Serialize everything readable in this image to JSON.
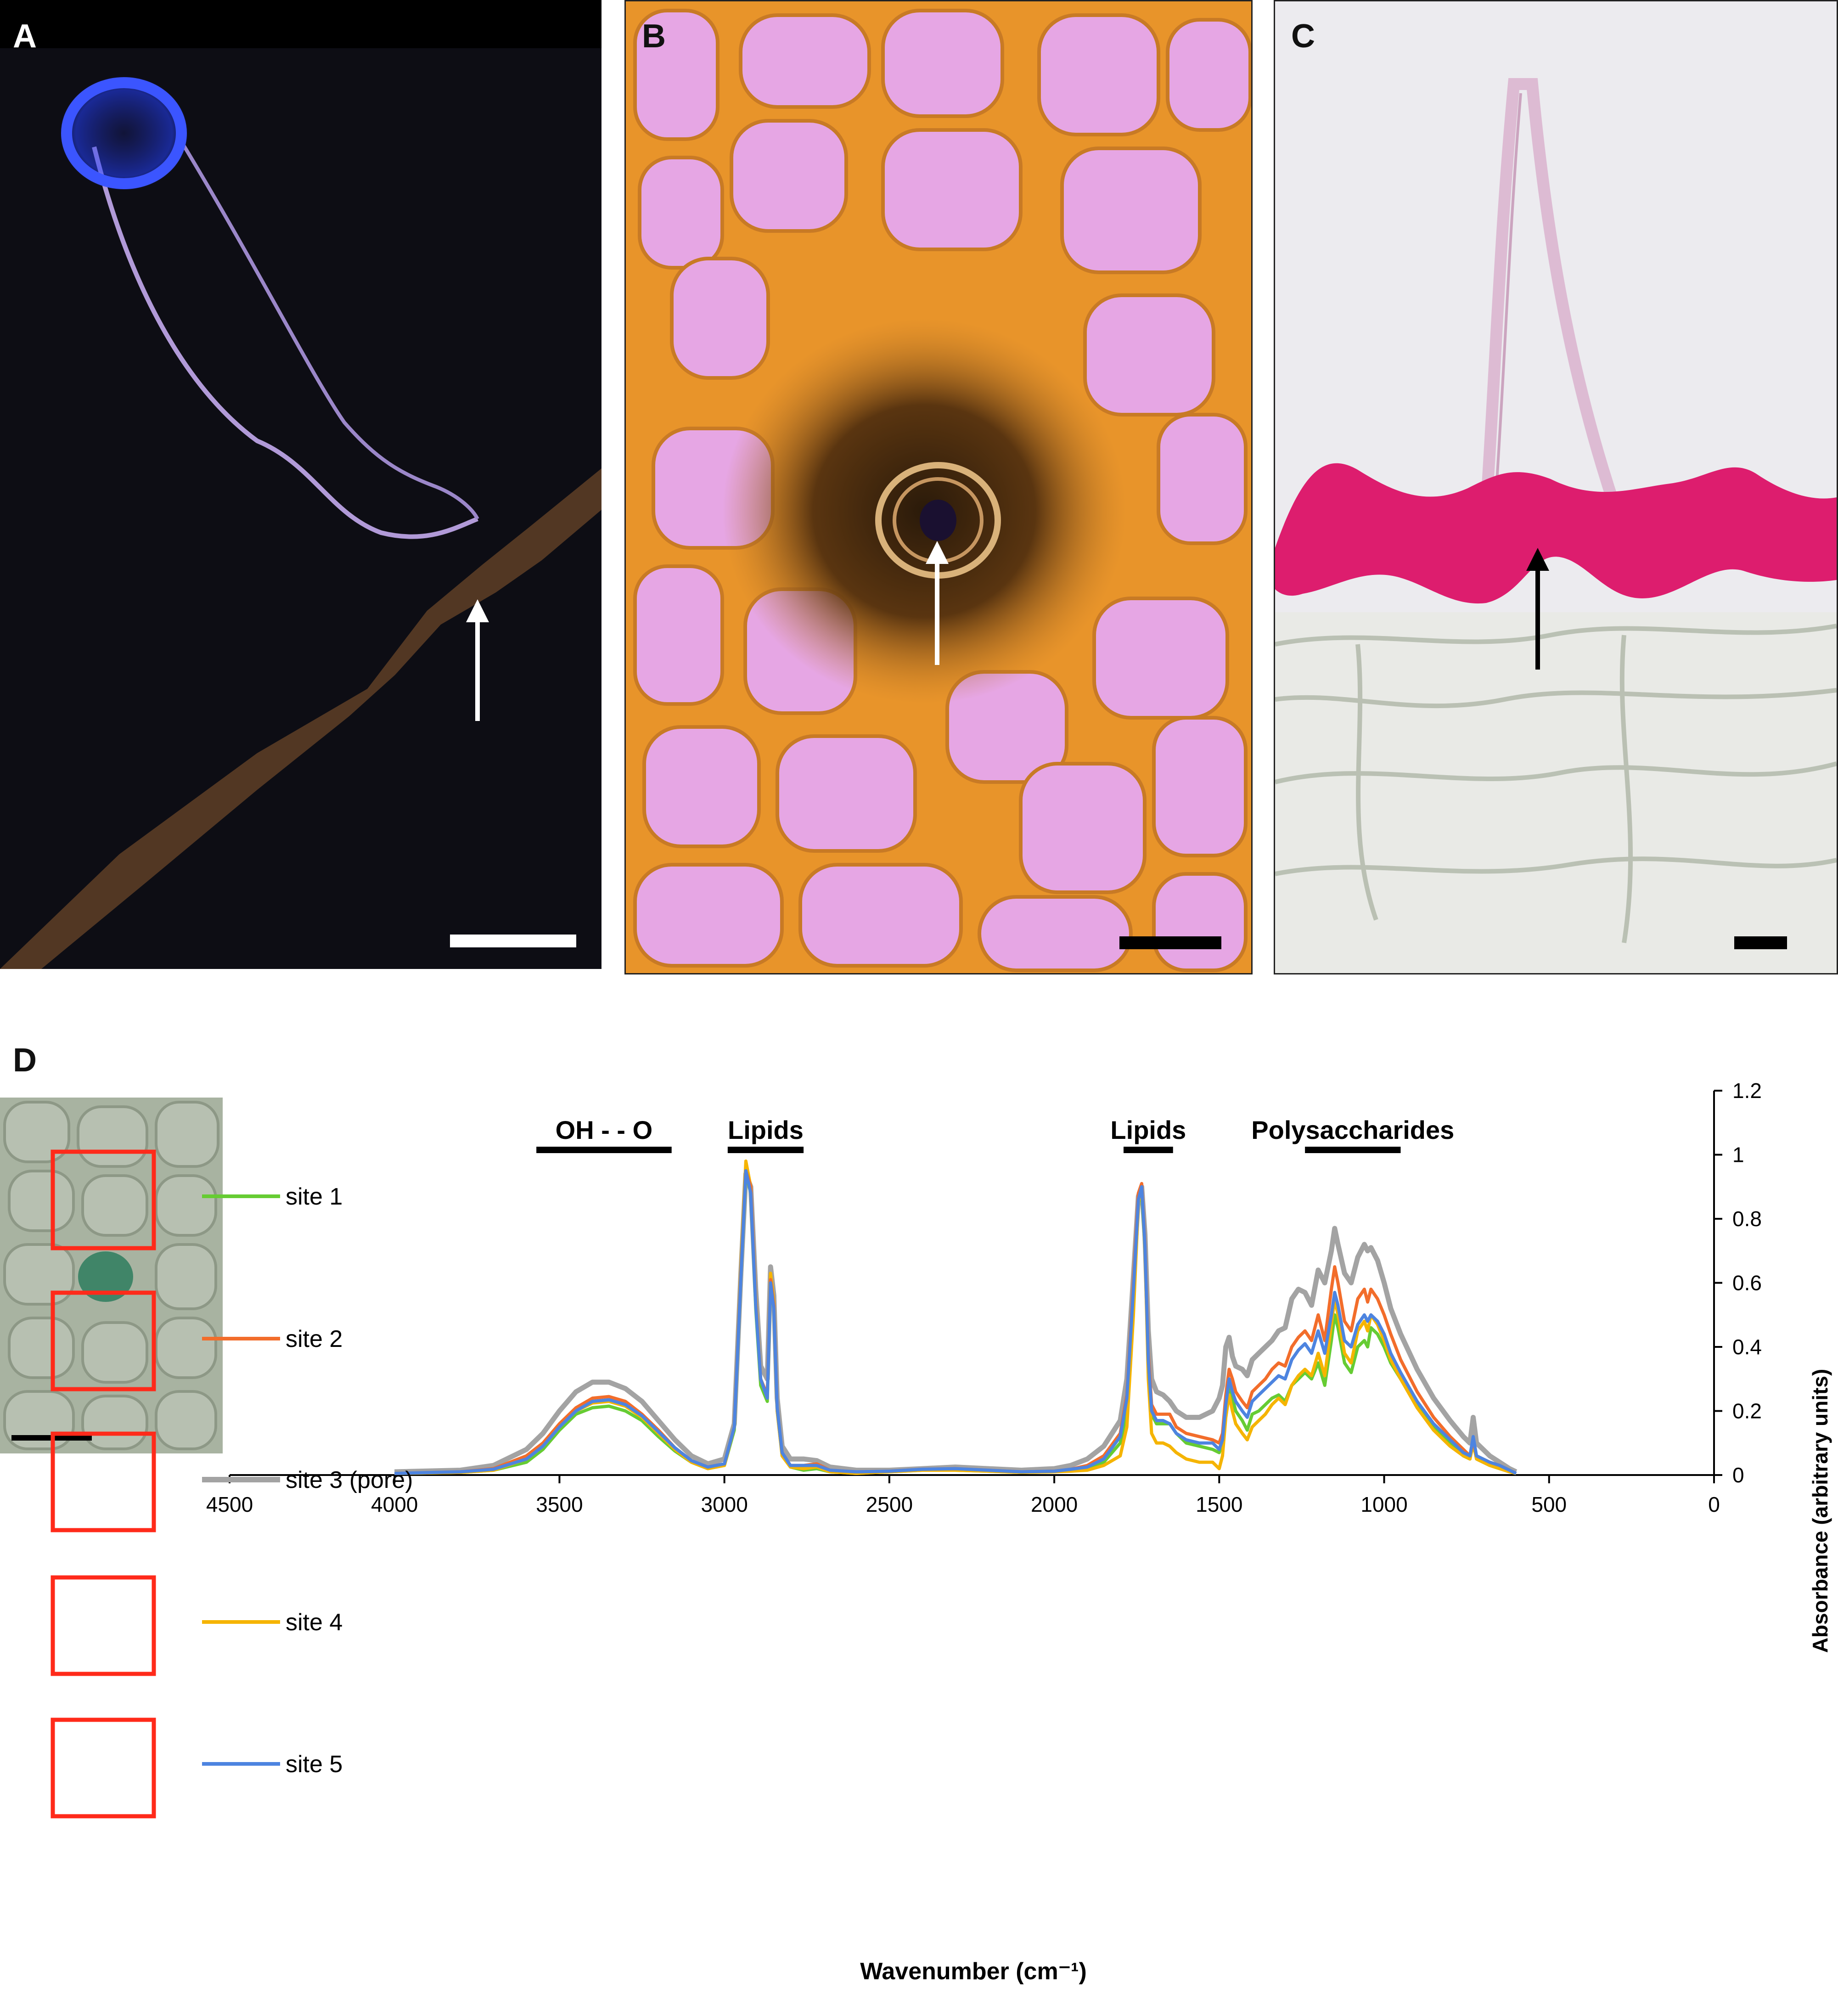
{
  "panels": {
    "a": {
      "label": "A"
    },
    "b": {
      "label": "B"
    },
    "c": {
      "label": "C"
    },
    "d": {
      "label": "D"
    }
  },
  "colors": {
    "site1": "#66cc33",
    "site2": "#f26d2b",
    "site3": "#a3a3a3",
    "site4": "#f5b400",
    "site5": "#4d84e0",
    "scale_bar": "#ffffff",
    "site_boxes": "#ff2a1a"
  },
  "chart_data": {
    "type": "line",
    "xlabel": "Wavenumber (cm⁻¹)",
    "ylabel": "Absorbance (arbitrary units)",
    "xlim": [
      4500,
      0
    ],
    "ylim": [
      0,
      1.2
    ],
    "x_ticks": [
      4500,
      4000,
      3500,
      3000,
      2500,
      2000,
      1500,
      1000,
      500,
      0
    ],
    "y_ticks": [
      0,
      0.2,
      0.4,
      0.6,
      0.8,
      1,
      1.2
    ],
    "y_tick_labels": [
      "0",
      "0.2",
      "0.4",
      "0.6",
      "0.8",
      "1",
      "1.2"
    ],
    "y_axis_side": "right",
    "grid": false,
    "legend_position": "left, beside inset image",
    "annotations": [
      {
        "text": "OH - - O",
        "range": [
          3570,
          3160
        ]
      },
      {
        "text": "Lipids",
        "range": [
          2990,
          2760
        ]
      },
      {
        "text": "Lipids",
        "range": [
          1790,
          1640
        ]
      },
      {
        "text": "Polysaccharides",
        "range": [
          1240,
          950
        ]
      }
    ],
    "x": [
      4000,
      3800,
      3700,
      3600,
      3550,
      3500,
      3450,
      3400,
      3350,
      3300,
      3250,
      3200,
      3150,
      3100,
      3050,
      3000,
      2970,
      2950,
      2935,
      2920,
      2905,
      2890,
      2870,
      2860,
      2850,
      2840,
      2825,
      2800,
      2760,
      2720,
      2680,
      2600,
      2500,
      2400,
      2300,
      2200,
      2100,
      2000,
      1950,
      1900,
      1850,
      1800,
      1780,
      1760,
      1745,
      1735,
      1725,
      1715,
      1705,
      1690,
      1670,
      1650,
      1630,
      1600,
      1560,
      1520,
      1500,
      1490,
      1480,
      1470,
      1460,
      1450,
      1430,
      1415,
      1400,
      1380,
      1360,
      1340,
      1320,
      1300,
      1280,
      1260,
      1240,
      1220,
      1200,
      1180,
      1160,
      1150,
      1140,
      1120,
      1100,
      1080,
      1060,
      1050,
      1040,
      1020,
      1000,
      980,
      950,
      900,
      850,
      800,
      760,
      740,
      730,
      720,
      700,
      680,
      650,
      620,
      600
    ],
    "series": [
      {
        "name": "site 1",
        "values": [
          0.005,
          0.008,
          0.015,
          0.04,
          0.08,
          0.14,
          0.19,
          0.21,
          0.215,
          0.2,
          0.17,
          0.12,
          0.075,
          0.04,
          0.02,
          0.03,
          0.14,
          0.62,
          0.94,
          0.88,
          0.52,
          0.28,
          0.23,
          0.6,
          0.52,
          0.2,
          0.06,
          0.025,
          0.015,
          0.02,
          0.01,
          0.005,
          0.01,
          0.015,
          0.015,
          0.012,
          0.008,
          0.01,
          0.015,
          0.02,
          0.04,
          0.1,
          0.2,
          0.55,
          0.85,
          0.88,
          0.7,
          0.35,
          0.19,
          0.16,
          0.16,
          0.16,
          0.13,
          0.1,
          0.09,
          0.08,
          0.07,
          0.1,
          0.2,
          0.28,
          0.24,
          0.2,
          0.17,
          0.14,
          0.19,
          0.2,
          0.22,
          0.24,
          0.25,
          0.23,
          0.28,
          0.3,
          0.32,
          0.3,
          0.35,
          0.28,
          0.42,
          0.5,
          0.46,
          0.35,
          0.32,
          0.4,
          0.42,
          0.4,
          0.46,
          0.44,
          0.4,
          0.35,
          0.3,
          0.22,
          0.15,
          0.1,
          0.06,
          0.05,
          0.1,
          0.05,
          0.04,
          0.03,
          0.02,
          0.01,
          0.005
        ]
      },
      {
        "name": "site 2",
        "values": [
          0.005,
          0.01,
          0.02,
          0.06,
          0.1,
          0.16,
          0.21,
          0.24,
          0.245,
          0.23,
          0.19,
          0.14,
          0.085,
          0.045,
          0.025,
          0.035,
          0.15,
          0.63,
          0.95,
          0.9,
          0.54,
          0.3,
          0.25,
          0.61,
          0.53,
          0.21,
          0.07,
          0.03,
          0.03,
          0.035,
          0.015,
          0.01,
          0.012,
          0.018,
          0.02,
          0.015,
          0.01,
          0.012,
          0.018,
          0.03,
          0.06,
          0.13,
          0.25,
          0.6,
          0.88,
          0.91,
          0.72,
          0.38,
          0.22,
          0.19,
          0.19,
          0.19,
          0.15,
          0.13,
          0.12,
          0.11,
          0.1,
          0.13,
          0.25,
          0.33,
          0.3,
          0.26,
          0.23,
          0.21,
          0.26,
          0.28,
          0.3,
          0.33,
          0.35,
          0.34,
          0.4,
          0.43,
          0.45,
          0.42,
          0.5,
          0.42,
          0.58,
          0.65,
          0.6,
          0.48,
          0.45,
          0.55,
          0.58,
          0.54,
          0.58,
          0.55,
          0.5,
          0.44,
          0.36,
          0.26,
          0.18,
          0.12,
          0.08,
          0.06,
          0.11,
          0.06,
          0.05,
          0.04,
          0.03,
          0.015,
          0.005
        ]
      },
      {
        "name": "site 3 (pore)",
        "values": [
          0.01,
          0.015,
          0.03,
          0.08,
          0.13,
          0.2,
          0.26,
          0.29,
          0.29,
          0.27,
          0.23,
          0.17,
          0.11,
          0.06,
          0.035,
          0.05,
          0.16,
          0.63,
          0.94,
          0.9,
          0.58,
          0.34,
          0.3,
          0.65,
          0.56,
          0.24,
          0.09,
          0.05,
          0.05,
          0.045,
          0.025,
          0.015,
          0.015,
          0.02,
          0.025,
          0.02,
          0.015,
          0.02,
          0.03,
          0.05,
          0.09,
          0.17,
          0.3,
          0.62,
          0.87,
          0.9,
          0.75,
          0.45,
          0.3,
          0.26,
          0.25,
          0.23,
          0.2,
          0.18,
          0.18,
          0.2,
          0.24,
          0.28,
          0.4,
          0.43,
          0.37,
          0.34,
          0.33,
          0.31,
          0.36,
          0.38,
          0.4,
          0.42,
          0.45,
          0.46,
          0.55,
          0.58,
          0.57,
          0.53,
          0.64,
          0.6,
          0.7,
          0.77,
          0.72,
          0.63,
          0.6,
          0.68,
          0.72,
          0.7,
          0.71,
          0.67,
          0.6,
          0.52,
          0.44,
          0.33,
          0.24,
          0.17,
          0.12,
          0.1,
          0.18,
          0.1,
          0.08,
          0.06,
          0.04,
          0.02,
          0.01
        ]
      },
      {
        "name": "site 4",
        "values": [
          0.005,
          0.008,
          0.015,
          0.05,
          0.09,
          0.15,
          0.2,
          0.225,
          0.23,
          0.215,
          0.18,
          0.13,
          0.08,
          0.04,
          0.02,
          0.03,
          0.15,
          0.65,
          0.98,
          0.9,
          0.55,
          0.3,
          0.24,
          0.63,
          0.54,
          0.2,
          0.06,
          0.025,
          0.02,
          0.025,
          0.01,
          0.005,
          0.01,
          0.015,
          0.015,
          0.012,
          0.008,
          0.01,
          0.012,
          0.015,
          0.03,
          0.06,
          0.15,
          0.5,
          0.85,
          0.9,
          0.7,
          0.3,
          0.13,
          0.1,
          0.1,
          0.09,
          0.07,
          0.05,
          0.04,
          0.04,
          0.02,
          0.06,
          0.18,
          0.25,
          0.2,
          0.16,
          0.13,
          0.11,
          0.15,
          0.17,
          0.19,
          0.22,
          0.24,
          0.22,
          0.28,
          0.31,
          0.33,
          0.31,
          0.38,
          0.31,
          0.47,
          0.55,
          0.5,
          0.38,
          0.35,
          0.45,
          0.48,
          0.45,
          0.5,
          0.47,
          0.42,
          0.36,
          0.3,
          0.21,
          0.14,
          0.09,
          0.06,
          0.05,
          0.1,
          0.05,
          0.04,
          0.03,
          0.02,
          0.01,
          0.005
        ]
      },
      {
        "name": "site 5",
        "values": [
          0.005,
          0.01,
          0.018,
          0.05,
          0.09,
          0.15,
          0.2,
          0.23,
          0.235,
          0.22,
          0.185,
          0.135,
          0.085,
          0.045,
          0.025,
          0.035,
          0.15,
          0.62,
          0.95,
          0.88,
          0.53,
          0.3,
          0.24,
          0.6,
          0.52,
          0.21,
          0.07,
          0.03,
          0.03,
          0.03,
          0.015,
          0.01,
          0.012,
          0.018,
          0.02,
          0.015,
          0.01,
          0.012,
          0.018,
          0.025,
          0.05,
          0.12,
          0.24,
          0.58,
          0.86,
          0.9,
          0.71,
          0.36,
          0.2,
          0.17,
          0.17,
          0.16,
          0.13,
          0.11,
          0.1,
          0.1,
          0.08,
          0.11,
          0.22,
          0.3,
          0.26,
          0.23,
          0.2,
          0.18,
          0.23,
          0.25,
          0.27,
          0.29,
          0.31,
          0.3,
          0.36,
          0.39,
          0.41,
          0.38,
          0.45,
          0.38,
          0.5,
          0.57,
          0.53,
          0.42,
          0.4,
          0.47,
          0.5,
          0.48,
          0.5,
          0.48,
          0.44,
          0.38,
          0.32,
          0.23,
          0.16,
          0.11,
          0.07,
          0.06,
          0.12,
          0.06,
          0.05,
          0.04,
          0.03,
          0.015,
          0.005
        ]
      }
    ]
  }
}
